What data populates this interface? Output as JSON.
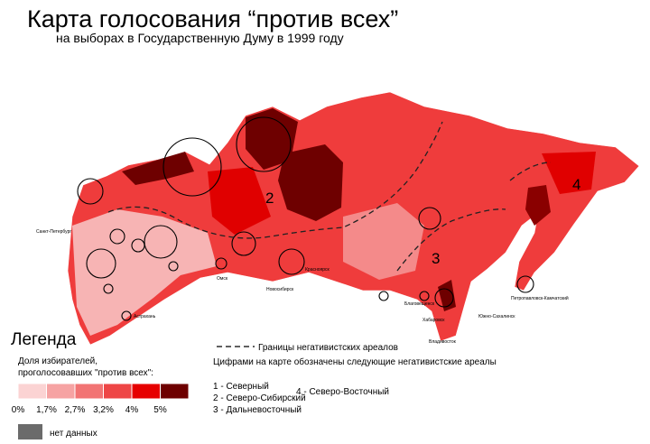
{
  "header": {
    "title": "Карта голосования “против всех”",
    "subtitle": "на выборах в Государственную Думу в 1999 году"
  },
  "map": {
    "region_labels": [
      "2",
      "3",
      "4"
    ],
    "cities": [
      "Санкт-Петербург",
      "Омск",
      "Новосибирск",
      "Красноярск",
      "Благовещенск",
      "Хабаровск",
      "Владивосток",
      "Южно-Сахалинск",
      "Петропавловск-Камчатский",
      "Астрахань"
    ]
  },
  "legend": {
    "title": "Легенда",
    "scale_caption": [
      "Доля избирателей,",
      "проголосовавших \"против всех\":"
    ],
    "colors": [
      "#fbd3d3",
      "#f6a3a3",
      "#f27474",
      "#ee4646",
      "#e60000",
      "#6e0000"
    ],
    "breaks": [
      "0%",
      "1,7%",
      "2,7%",
      "3,2%",
      "4%",
      "5%"
    ],
    "no_data_color": "#6b6b6b",
    "no_data": "нет данных",
    "boundary_label": "Границы негативистских ареалов",
    "areas_caption": "Цифрами на карте обозначены следующие негативистские ареалы",
    "areas": [
      "1 - Северный",
      "2 - Северо-Сибирский",
      "3 - Дальневосточный",
      "4 - Северо-Восточный"
    ]
  }
}
